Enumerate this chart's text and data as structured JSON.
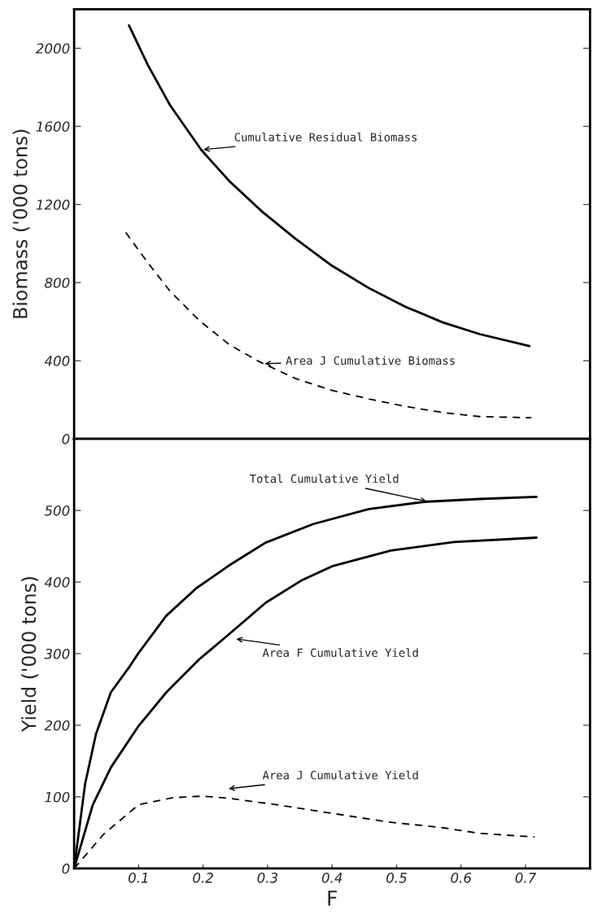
{
  "chart_data": [
    {
      "type": "line",
      "ylabel": "Biomass ('000 tons)",
      "xlim": [
        0,
        0.8
      ],
      "ylim": [
        0,
        2200
      ],
      "yticks": [
        0,
        400,
        800,
        1200,
        1600,
        2000
      ],
      "tick_labels": "y",
      "grid": false,
      "legend": false,
      "series": [
        {
          "color": "#000000",
          "line_style": "solid",
          "x": [
            0.085,
            0.114,
            0.149,
            0.197,
            0.24,
            0.291,
            0.343,
            0.4,
            0.457,
            0.514,
            0.571,
            0.629,
            0.706
          ],
          "values": [
            2117,
            1916,
            1707,
            1480,
            1322,
            1165,
            1025,
            886,
            772,
            676,
            597,
            536,
            475
          ]
        },
        {
          "color": "#000000",
          "line_style": "dashed",
          "x": [
            0.08,
            0.114,
            0.149,
            0.194,
            0.24,
            0.286,
            0.343,
            0.4,
            0.457,
            0.514,
            0.571,
            0.629,
            0.709
          ],
          "values": [
            1057,
            903,
            755,
            606,
            484,
            397,
            309,
            248,
            204,
            166,
            135,
            114,
            108
          ]
        }
      ],
      "annotations": [
        {
          "text": "Cumulative Residual Biomass",
          "x": 0.197,
          "y": 1480
        },
        "Area J Cumulative Biomass"
      ]
    },
    {
      "type": "line",
      "xlabel": "F",
      "ylabel": "Yield ('000 tons)",
      "xlim": [
        0,
        0.8
      ],
      "ylim": [
        0,
        600
      ],
      "xticks": [
        {
          "value": 0,
          "label": null
        },
        0.1,
        0.2,
        0.3,
        0.4,
        0.5,
        0.6,
        0.7
      ],
      "yticks": [
        0,
        100,
        200,
        300,
        400,
        500
      ],
      "grid": false,
      "legend": false,
      "series": [
        {
          "color": "#000000",
          "line_style": "solid",
          "x": [
            0,
            0.017,
            0.034,
            0.057,
            0.086,
            0.1,
            0.143,
            0.189,
            0.24,
            0.297,
            0.371,
            0.457,
            0.543,
            0.629,
            0.717
          ],
          "values": [
            0,
            118,
            188,
            246,
            282,
            301,
            353,
            391,
            423,
            455,
            481,
            502,
            512,
            516,
            519
          ]
        },
        {
          "color": "#000000",
          "line_style": "solid",
          "x": [
            0,
            0.029,
            0.057,
            0.1,
            0.143,
            0.194,
            0.24,
            0.297,
            0.354,
            0.4,
            0.491,
            0.589,
            0.717
          ],
          "values": [
            0,
            89,
            141,
            199,
            246,
            292,
            327,
            371,
            403,
            422,
            444,
            456,
            462
          ]
        },
        {
          "color": "#000000",
          "line_style": "dashed",
          "x": [
            0,
            0.046,
            0.1,
            0.154,
            0.2,
            0.24,
            0.314,
            0.4,
            0.486,
            0.571,
            0.629,
            0.714
          ],
          "values": [
            0,
            48,
            89,
            99,
            101,
            98,
            89,
            77,
            65,
            57,
            49,
            44
          ]
        }
      ],
      "annotations": [
        {
          "text": "Total Cumulative Yield",
          "x": 0.55,
          "y": 512
        },
        "Area F Cumulative Yield",
        "Area J Cumulative Yield"
      ]
    }
  ]
}
